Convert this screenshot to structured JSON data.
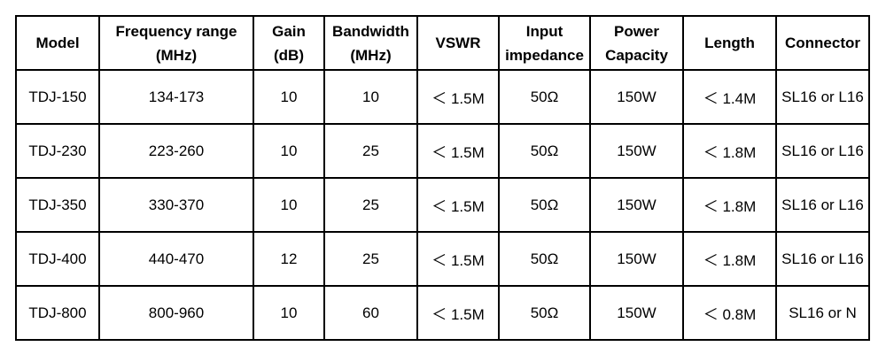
{
  "table": {
    "header": [
      "Model",
      "Frequency range\n(MHz)",
      "Gain\n(dB)",
      "Bandwidth\n(MHz)",
      "VSWR",
      "Input\nimpedance",
      "Power\nCapacity",
      "Length",
      "Connector"
    ],
    "rows": [
      [
        "TDJ-150",
        "134-173",
        "10",
        "10",
        "＜ 1.5M",
        "50Ω",
        "150W",
        "＜ 1.4M",
        "SL16 or L16"
      ],
      [
        "TDJ-230",
        "223-260",
        "10",
        "25",
        "＜ 1.5M",
        "50Ω",
        "150W",
        "＜ 1.8M",
        "SL16 or L16"
      ],
      [
        "TDJ-350",
        "330-370",
        "10",
        "25",
        "＜ 1.5M",
        "50Ω",
        "150W",
        "＜ 1.8M",
        "SL16 or L16"
      ],
      [
        "TDJ-400",
        "440-470",
        "12",
        "25",
        "＜ 1.5M",
        "50Ω",
        "150W",
        "＜ 1.8M",
        "SL16 or L16"
      ],
      [
        "TDJ-800",
        "800-960",
        "10",
        "60",
        "＜ 1.5M",
        "50Ω",
        "150W",
        "＜ 0.8M",
        "SL16 or N"
      ]
    ]
  }
}
